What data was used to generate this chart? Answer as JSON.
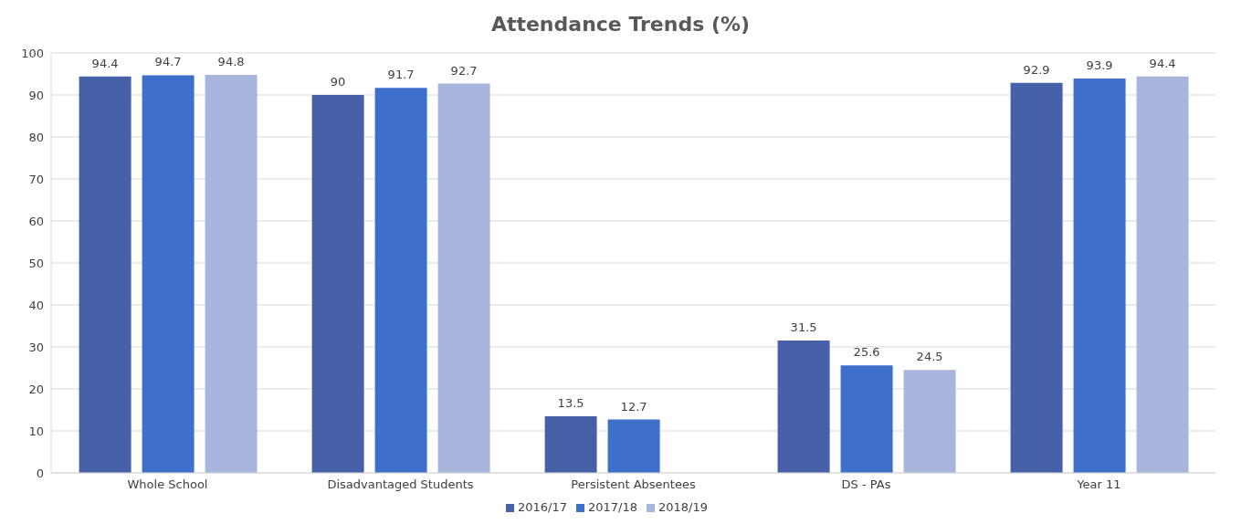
{
  "chart_data": {
    "type": "bar",
    "title": "Attendance Trends (%)",
    "categories": [
      "Whole School",
      "Disadvantaged Students",
      "Persistent Absentees",
      "DS - PAs",
      "Year 11"
    ],
    "series": [
      {
        "name": "2016/17",
        "color": "#4661a8",
        "values": [
          94.4,
          90,
          13.5,
          31.5,
          92.9
        ]
      },
      {
        "name": "2017/18",
        "color": "#3d6fcb",
        "values": [
          94.7,
          91.7,
          12.7,
          25.6,
          93.9
        ]
      },
      {
        "name": "2018/19",
        "color": "#a8b5dc",
        "values": [
          94.8,
          92.7,
          null,
          24.5,
          94.4
        ]
      }
    ],
    "ylim": [
      0,
      100
    ],
    "yticks": [
      0,
      10,
      20,
      30,
      40,
      50,
      60,
      70,
      80,
      90,
      100
    ],
    "grid": "y",
    "legend": "bottom",
    "data_labels": true
  }
}
